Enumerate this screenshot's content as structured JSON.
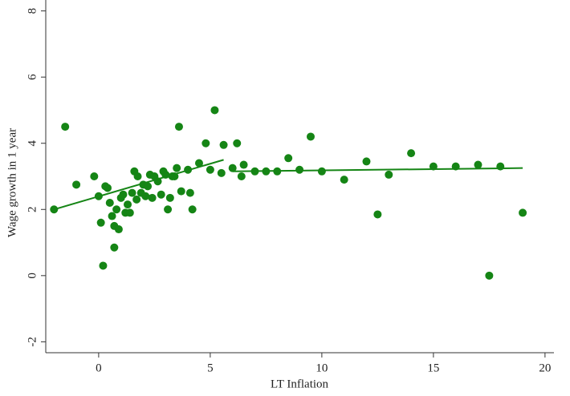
{
  "chart_data": {
    "type": "scatter",
    "x_label": "LT Inflation",
    "y_label": "Wage growth in 1 year",
    "color": "#158515",
    "xlim": [
      -2.37,
      20.4
    ],
    "ylim": [
      -2.33,
      8.33
    ],
    "xticks": [
      0,
      5,
      10,
      15,
      20
    ],
    "yticks": [
      -2,
      0,
      2,
      4,
      6,
      8
    ],
    "x": [
      -2.0,
      -1.5,
      -1.0,
      -0.2,
      0.0,
      0.1,
      0.2,
      0.3,
      0.4,
      0.5,
      0.6,
      0.7,
      0.7,
      0.8,
      0.9,
      1.0,
      1.1,
      1.2,
      1.3,
      1.4,
      1.5,
      1.6,
      1.7,
      1.75,
      1.9,
      2.0,
      2.1,
      2.2,
      2.3,
      2.4,
      2.5,
      2.65,
      2.8,
      2.9,
      3.0,
      3.1,
      3.2,
      3.3,
      3.4,
      3.5,
      3.6,
      3.7,
      4.0,
      4.1,
      4.2,
      4.5,
      4.8,
      5.0,
      5.2,
      5.5,
      5.6,
      6.0,
      6.2,
      6.4,
      6.5,
      7.0,
      7.5,
      8.0,
      8.5,
      9.0,
      9.5,
      10.0,
      11.0,
      12.0,
      12.5,
      13.0,
      14.0,
      15.0,
      16.0,
      17.0,
      17.5,
      18.0,
      19.0
    ],
    "values": [
      2.0,
      4.5,
      2.75,
      3.0,
      2.4,
      1.6,
      0.3,
      2.7,
      2.65,
      2.2,
      1.8,
      1.5,
      0.85,
      2.0,
      1.4,
      2.35,
      2.45,
      1.9,
      2.15,
      1.9,
      2.5,
      3.15,
      2.3,
      3.0,
      2.5,
      2.75,
      2.4,
      2.7,
      3.05,
      2.35,
      3.0,
      2.85,
      2.45,
      3.15,
      3.05,
      2.0,
      2.35,
      3.0,
      3.0,
      3.25,
      4.5,
      2.55,
      3.2,
      2.5,
      2.0,
      3.4,
      4.0,
      3.2,
      5.0,
      3.1,
      3.95,
      3.25,
      4.0,
      3.0,
      3.35,
      3.15,
      3.15,
      3.15,
      3.55,
      3.2,
      4.2,
      3.15,
      2.9,
      3.45,
      1.85,
      3.05,
      3.7,
      3.3,
      3.3,
      3.35,
      0.0,
      3.3,
      1.9
    ],
    "fit_lines": [
      {
        "x": [
          -2.0,
          5.6
        ],
        "values": [
          2.0,
          3.5
        ]
      },
      {
        "x": [
          6.0,
          19.0
        ],
        "values": [
          3.15,
          3.25
        ]
      }
    ]
  }
}
